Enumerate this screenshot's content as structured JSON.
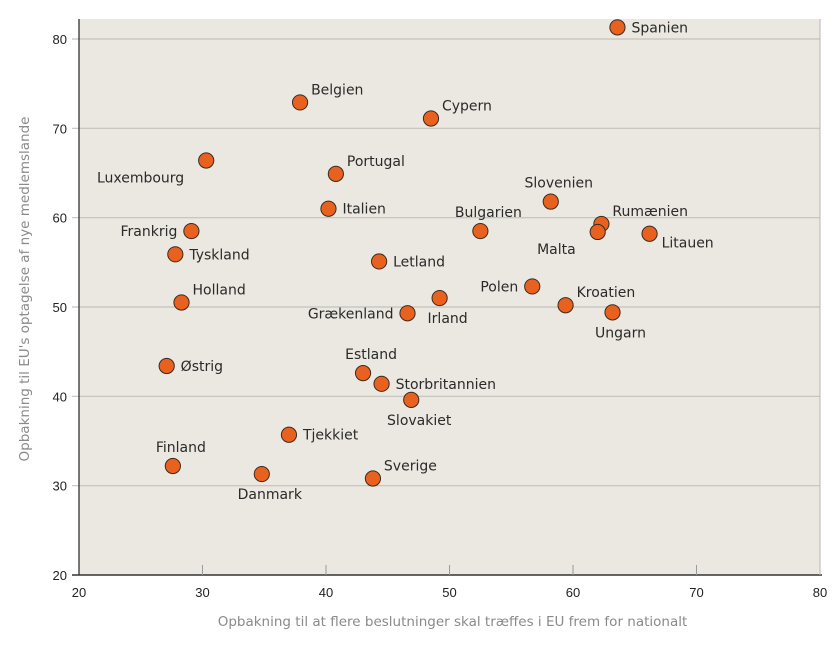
{
  "chart_data": {
    "type": "scatter",
    "title": "",
    "xlabel": "Opbakning til at flere beslutninger skal træffes i EU frem for nationalt",
    "ylabel": "Opbakning til EU's optagelse af nye medlemslande",
    "xlim": [
      20,
      80
    ],
    "ylim": [
      20,
      82
    ],
    "xticks": [
      20,
      30,
      40,
      50,
      60,
      70,
      80
    ],
    "yticks": [
      20,
      30,
      40,
      50,
      60,
      70,
      80
    ],
    "grid": "horizontal",
    "colors": {
      "marker": "#e8611f",
      "marker_edge": "#3a2a20",
      "plot_bg": "#ebe8e1",
      "grid": "#c4c2bc",
      "axis": "#333333"
    },
    "points": [
      {
        "label": "Spanien",
        "x": 63.6,
        "y": 81.3,
        "anchor": "right"
      },
      {
        "label": "Belgien",
        "x": 37.9,
        "y": 72.9,
        "anchor": "upper-right"
      },
      {
        "label": "Cypern",
        "x": 48.5,
        "y": 71.1,
        "anchor": "upper-right"
      },
      {
        "label": "Luxembourg",
        "x": 30.3,
        "y": 66.4,
        "anchor": "lower-left"
      },
      {
        "label": "Portugal",
        "x": 40.8,
        "y": 64.9,
        "anchor": "upper-right"
      },
      {
        "label": "Italien",
        "x": 40.2,
        "y": 61.0,
        "anchor": "right"
      },
      {
        "label": "Slovenien",
        "x": 58.2,
        "y": 61.8,
        "anchor": "above"
      },
      {
        "label": "Rumænien",
        "x": 62.3,
        "y": 59.3,
        "anchor": "upper-right"
      },
      {
        "label": "Malta",
        "x": 62.0,
        "y": 58.4,
        "anchor": "lower-left"
      },
      {
        "label": "Litauen",
        "x": 66.2,
        "y": 58.2,
        "anchor": "lower-right"
      },
      {
        "label": "Bulgarien",
        "x": 52.5,
        "y": 58.5,
        "anchor": "above"
      },
      {
        "label": "Frankrig",
        "x": 29.1,
        "y": 58.5,
        "anchor": "left"
      },
      {
        "label": "Tyskland",
        "x": 27.8,
        "y": 55.9,
        "anchor": "right"
      },
      {
        "label": "Letland",
        "x": 44.3,
        "y": 55.1,
        "anchor": "right"
      },
      {
        "label": "Polen",
        "x": 56.7,
        "y": 52.3,
        "anchor": "left"
      },
      {
        "label": "Holland",
        "x": 28.3,
        "y": 50.5,
        "anchor": "upper-right"
      },
      {
        "label": "Irland",
        "x": 49.2,
        "y": 51.0,
        "anchor": "below"
      },
      {
        "label": "Kroatien",
        "x": 59.4,
        "y": 50.2,
        "anchor": "upper-right"
      },
      {
        "label": "Grækenland",
        "x": 46.6,
        "y": 49.3,
        "anchor": "left"
      },
      {
        "label": "Ungarn",
        "x": 63.2,
        "y": 49.4,
        "anchor": "below"
      },
      {
        "label": "Østrig",
        "x": 27.1,
        "y": 43.4,
        "anchor": "right"
      },
      {
        "label": "Estland",
        "x": 43.0,
        "y": 42.6,
        "anchor": "above"
      },
      {
        "label": "Storbritannien",
        "x": 44.5,
        "y": 41.4,
        "anchor": "right"
      },
      {
        "label": "Slovakiet",
        "x": 46.9,
        "y": 39.6,
        "anchor": "below"
      },
      {
        "label": "Tjekkiet",
        "x": 37.0,
        "y": 35.7,
        "anchor": "right"
      },
      {
        "label": "Finland",
        "x": 27.6,
        "y": 32.2,
        "anchor": "above"
      },
      {
        "label": "Danmark",
        "x": 34.8,
        "y": 31.3,
        "anchor": "below"
      },
      {
        "label": "Sverige",
        "x": 43.8,
        "y": 30.8,
        "anchor": "upper-right"
      }
    ]
  }
}
